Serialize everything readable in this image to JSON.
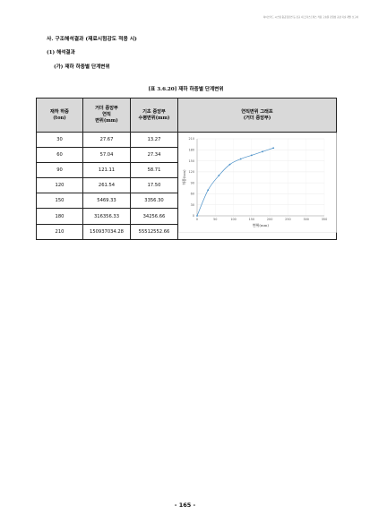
{
  "running_header": "하이브리드 시스템 중공형단면 등 강교 내 프리스트레스 적용 고효율 강합성 교량 기술 개발 보고서",
  "section_title": "사. 구조해석결과 (재료시험강도 적용 시)",
  "subsection_title": "(1) 해석결과",
  "subsubsection_title": "(가) 재하 하중별 단계변위",
  "table_caption": "[표 3.6.20] 재하 하중별 단계변위",
  "table": {
    "headers": [
      "재하 하중\n(ton)",
      "거더 중앙부\n연직\n변위(mm)",
      "기초 중앙부\n수평변위(mm)",
      "연직변위 그래프\n(거더 중앙부)"
    ],
    "rows": [
      [
        "30",
        "27.67",
        "13.27"
      ],
      [
        "60",
        "57.04",
        "27.34"
      ],
      [
        "90",
        "121.11",
        "58.71"
      ],
      [
        "120",
        "261.54",
        "17.50"
      ],
      [
        "150",
        "5469.33",
        "3356.30"
      ],
      [
        "180",
        "316356.33",
        "34256.66"
      ],
      [
        "210",
        "150937034.28",
        "55512552.66"
      ]
    ]
  },
  "chart_data": {
    "type": "line",
    "x": [
      0,
      30,
      60,
      90,
      120,
      150,
      180,
      210
    ],
    "y": [
      0,
      70,
      110,
      140,
      155,
      165,
      175,
      185
    ],
    "xlabel": "변위(mm)",
    "ylabel": "하중(ton)",
    "xlim": [
      0,
      350
    ],
    "ylim": [
      0,
      210
    ],
    "xticks": [
      "0",
      "50",
      "100",
      "150",
      "200",
      "250",
      "300",
      "350"
    ],
    "yticks": [
      "0",
      "30",
      "60",
      "90",
      "120",
      "150",
      "180",
      "210"
    ],
    "grid": true,
    "series_color": "#4a90c8"
  },
  "page_number": "- 165 -"
}
